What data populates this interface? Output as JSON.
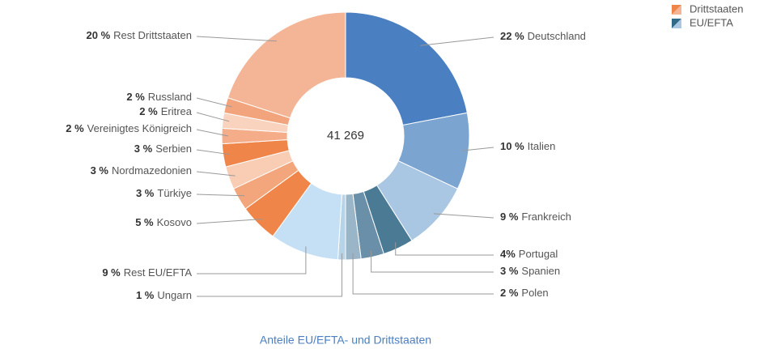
{
  "chart_data": {
    "type": "donut",
    "title": "Anteile EU/EFTA- und Drittstaaten",
    "center_label": "41 269",
    "categories": [
      "Deutschland",
      "Italien",
      "Frankreich",
      "Portugal",
      "Spanien",
      "Polen",
      "Ungarn",
      "Rest EU/EFTA",
      "Kosovo",
      "Türkiye",
      "Nordmazedonien",
      "Serbien",
      "Vereinigtes Königreich",
      "Eritrea",
      "Russland",
      "Rest Drittstaaten"
    ],
    "values": [
      22,
      10,
      9,
      4,
      3,
      2,
      1,
      9,
      5,
      3,
      3,
      3,
      2,
      2,
      2,
      20
    ],
    "value_labels": [
      "22 %",
      "10 %",
      "9 %",
      "4%",
      "3 %",
      "2 %",
      "1 %",
      "9 %",
      "5 %",
      "3 %",
      "3 %",
      "3 %",
      "2 %",
      "2 %",
      "2 %",
      "20 %"
    ],
    "colors": [
      "#4a7fc1",
      "#7ba4d0",
      "#a9c6e2",
      "#4a7a94",
      "#6a8fa8",
      "#9ab5c8",
      "#b6d4e8",
      "#c5e0f4",
      "#f0854a",
      "#f3a67c",
      "#f8cdb3",
      "#f0854a",
      "#f4ad88",
      "#f9d3bd",
      "#f2a47c",
      "#f4b596"
    ],
    "legend": [
      {
        "name": "Drittstaaten",
        "colors": [
          "#f0854a",
          "#f4b596"
        ]
      },
      {
        "name": "EU/EFTA",
        "colors": [
          "#2f6a88",
          "#a9c6e2"
        ]
      }
    ],
    "legend_position": "upper right"
  }
}
